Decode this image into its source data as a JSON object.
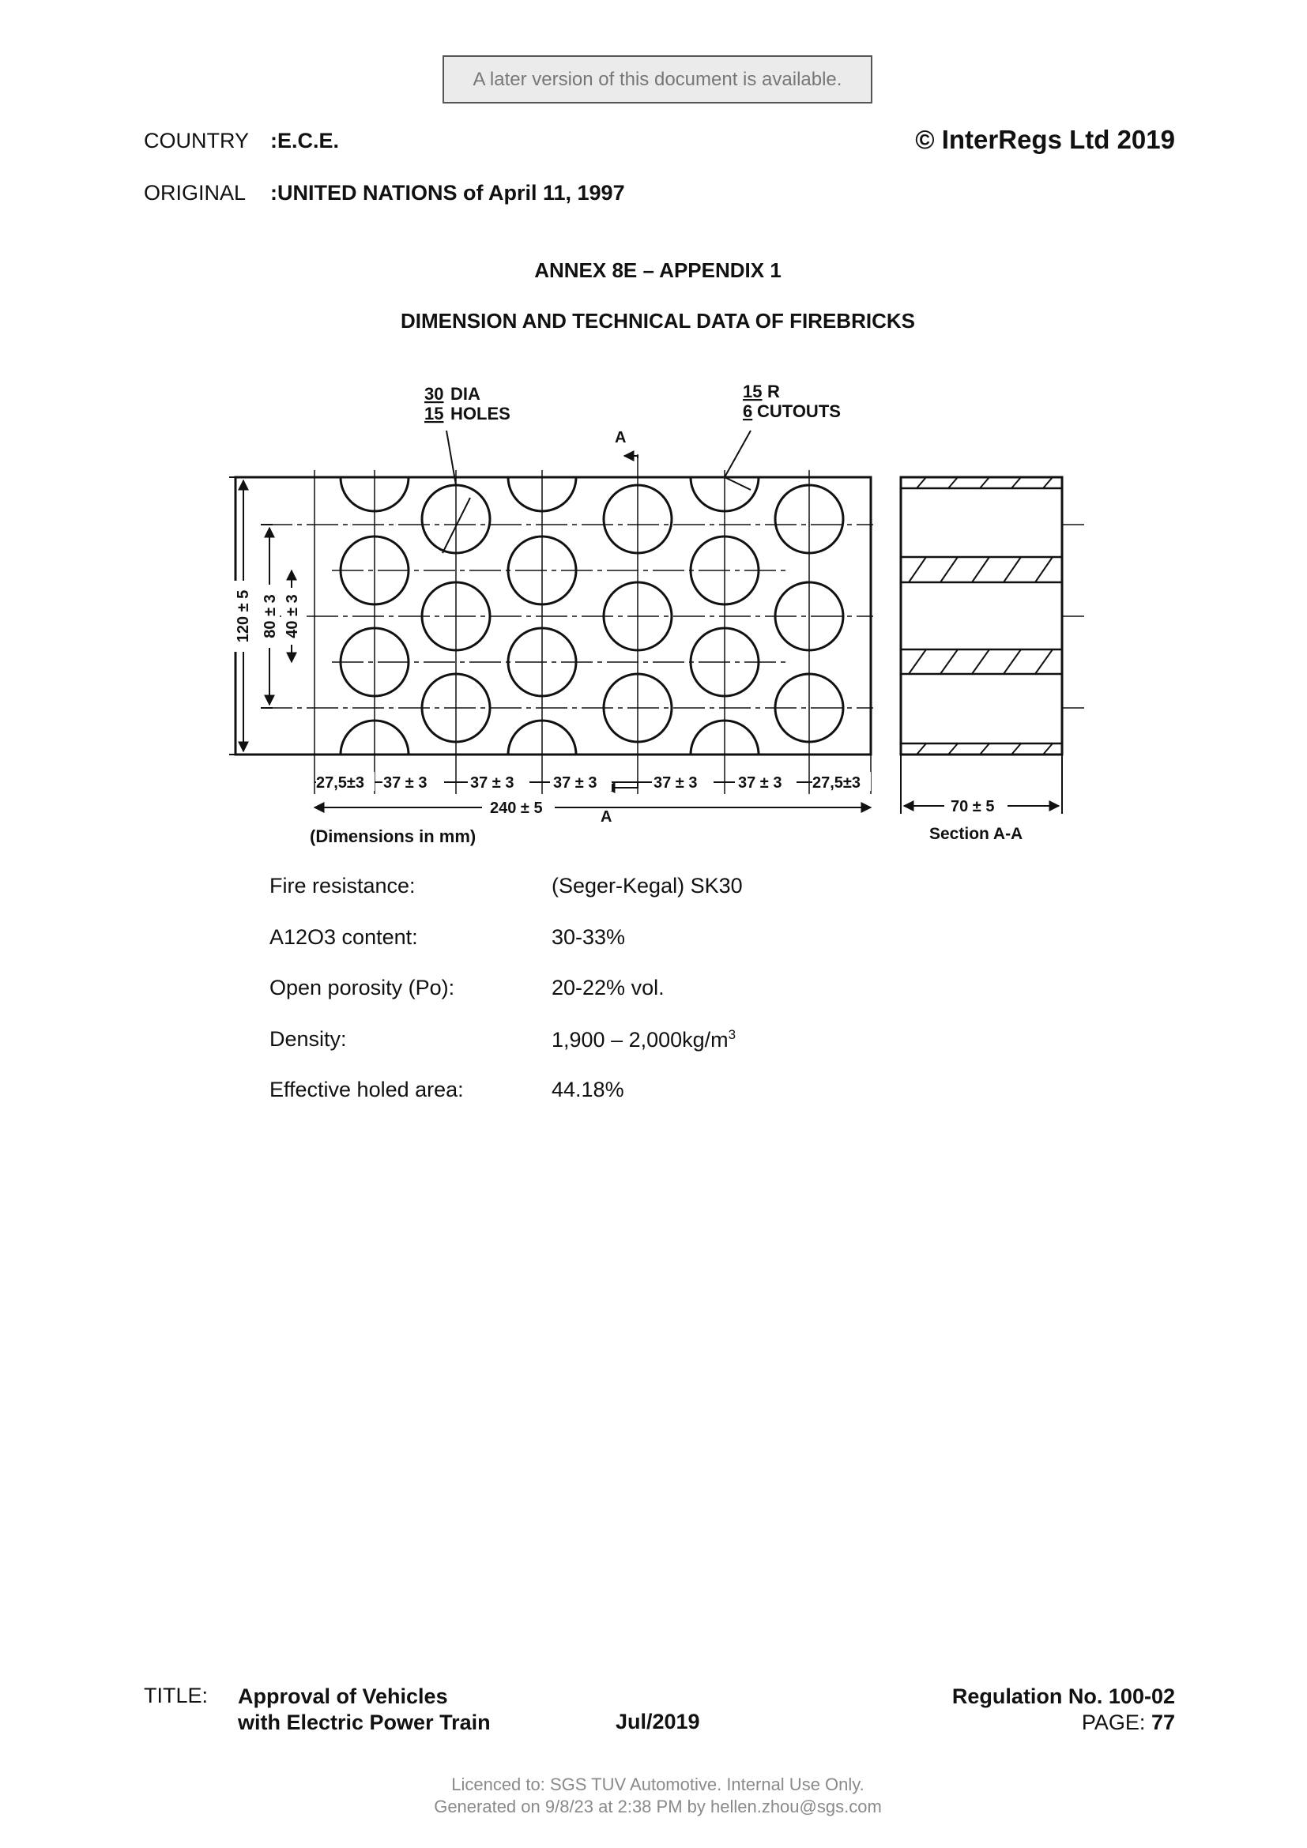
{
  "banner": "A later version of this document is available.",
  "header": {
    "country_label": "COUNTRY",
    "country_value": ":E.C.E.",
    "original_label": "ORIGINAL",
    "original_value": ":UNITED NATIONS of April 11, 1997",
    "copyright": "© InterRegs Ltd 2019"
  },
  "annex_title": "ANNEX 8E – APPENDIX 1",
  "section_title": "DIMENSION AND TECHNICAL DATA OF FIREBRICKS",
  "drawing": {
    "holes_qty": "30",
    "holes_desc": "DIA",
    "holes_count": "15",
    "holes_word": "HOLES",
    "cutout_qty": "15",
    "cutout_desc": "R",
    "cutout_count": "6",
    "cutout_word": "CUTOUTS",
    "section_mark": "A",
    "dim_height": "120 ± 5",
    "dim_inner": "80 ± 3",
    "dim_pitch_v": "40 ± 3",
    "dim_edge": "27,5±3",
    "dim_pitch": "37 ± 3",
    "dim_length": "240 ± 5",
    "dim_depth": "70 ± 5",
    "units_note": "(Dimensions in mm)",
    "section_label": "Section A-A"
  },
  "properties": [
    {
      "label": "Fire resistance:",
      "value": "(Seger-Kegal) SK30"
    },
    {
      "label": "A12O3 content:",
      "value": "30-33%"
    },
    {
      "label": "Open porosity (Po):",
      "value": "20-22% vol."
    },
    {
      "label": "Density:",
      "value": "1,900 – 2,000kg/m",
      "sup": "3"
    },
    {
      "label": "Effective holed area:",
      "value": "44.18%"
    }
  ],
  "footer": {
    "title_label": "TITLE:",
    "title_line1": "Approval of Vehicles",
    "title_line2": "with Electric Power Train",
    "date": "Jul/2019",
    "regulation": "Regulation No. 100-02",
    "page_label": "PAGE:",
    "page_number": "77"
  },
  "licence": {
    "line1": "Licenced to: SGS TUV Automotive. Internal Use Only.",
    "line2": "Generated on 9/8/23 at 2:38 PM by hellen.zhou@sgs.com"
  }
}
